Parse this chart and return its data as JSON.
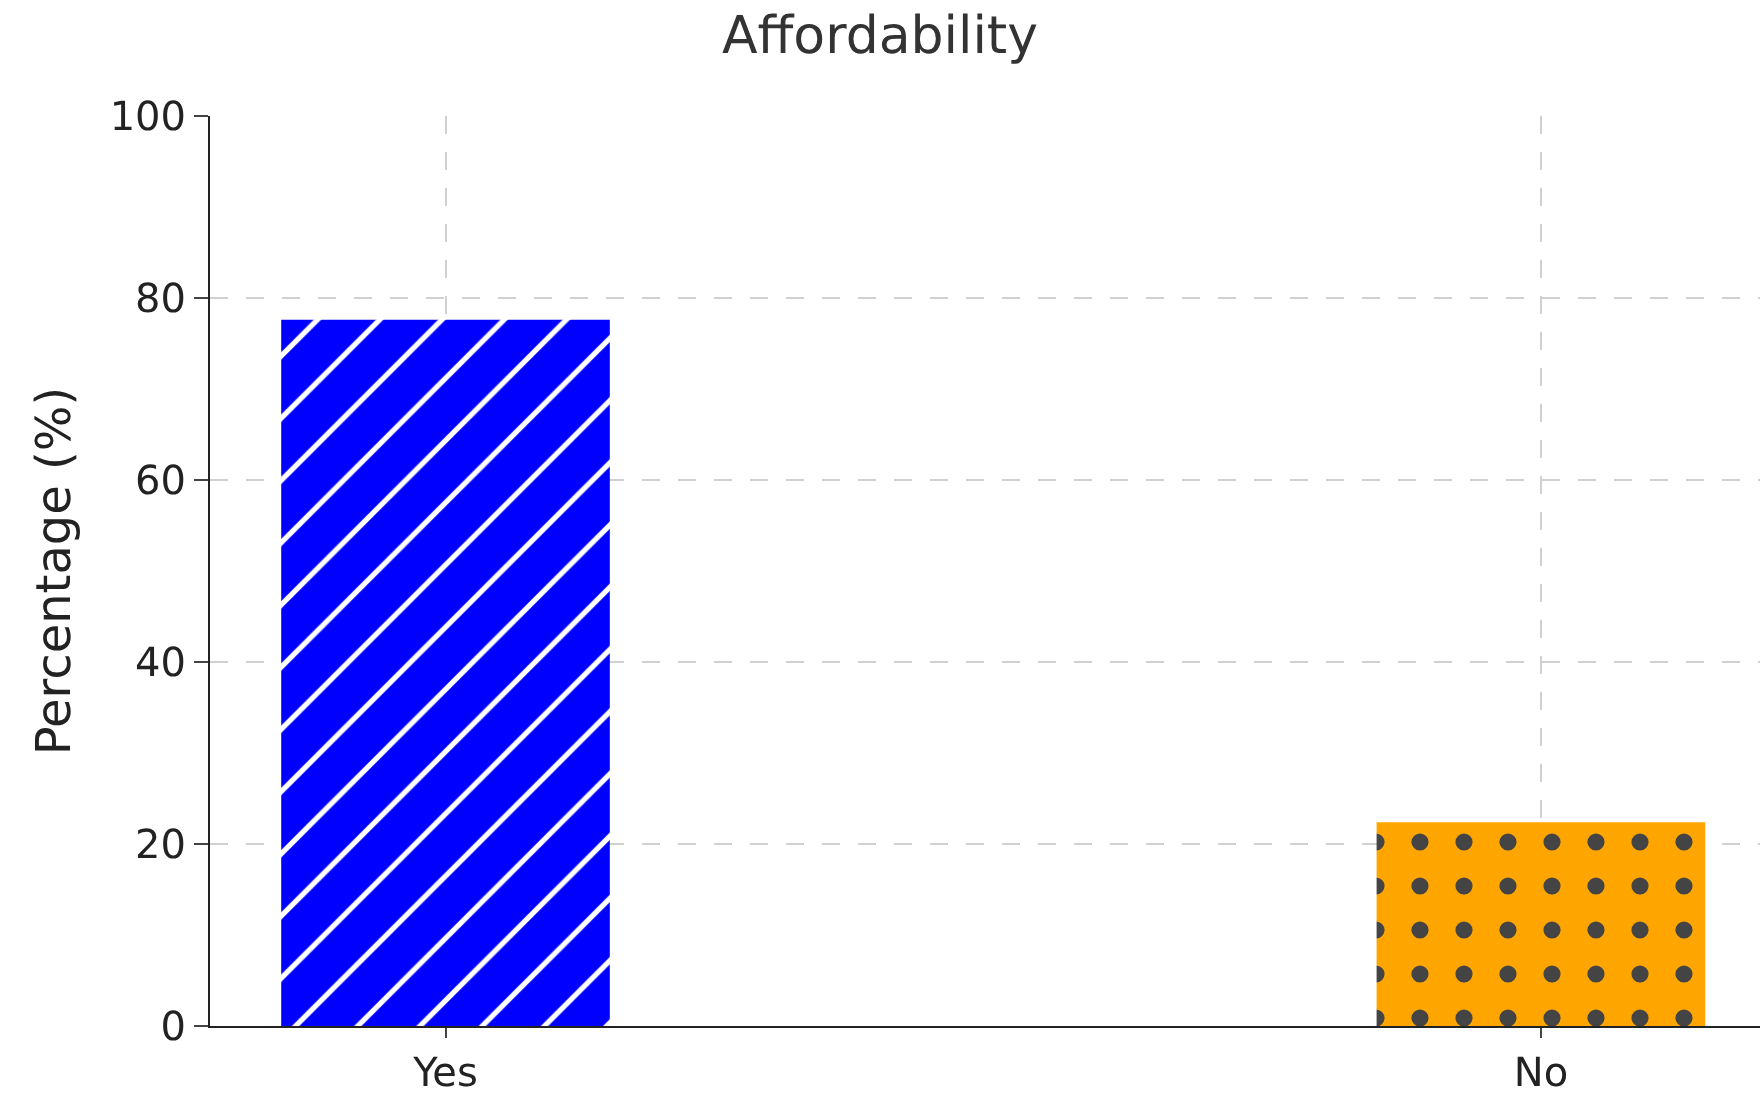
{
  "chart_data": {
    "type": "bar",
    "title": "Affordability",
    "ylabel": "Percentage (%)",
    "categories": [
      "Yes",
      "No"
    ],
    "values": [
      77.6,
      22.4
    ],
    "colors": [
      "#0000ff",
      "#ffa500"
    ],
    "ylim": [
      0,
      100
    ],
    "yticks": [
      0,
      20,
      40,
      60,
      80,
      100
    ],
    "grid": true
  }
}
